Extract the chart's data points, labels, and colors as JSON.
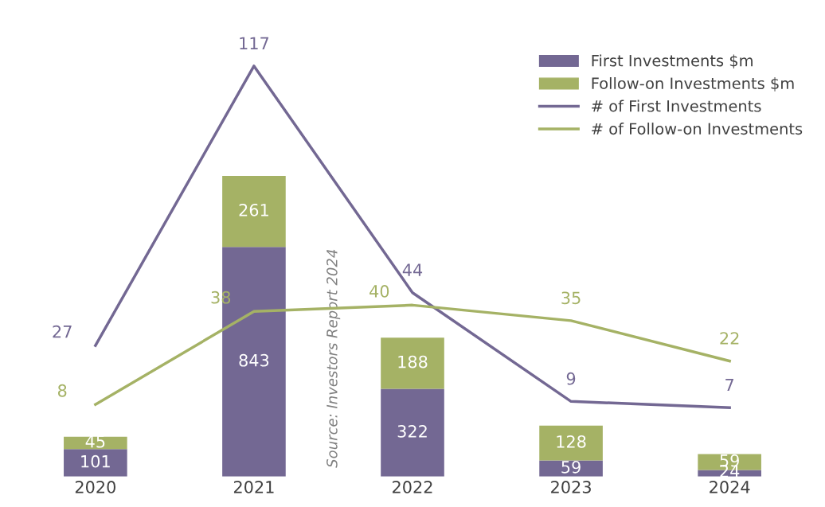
{
  "chart_data": {
    "type": "bar",
    "stacked": true,
    "categories": [
      "2020",
      "2021",
      "2022",
      "2023",
      "2024"
    ],
    "series": [
      {
        "name": "First Investments $m",
        "color": "#736893",
        "values": [
          101,
          843,
          322,
          59,
          24
        ]
      },
      {
        "name": "Follow-on Investments $m",
        "color": "#a5b265",
        "values": [
          45,
          261,
          188,
          128,
          59
        ]
      },
      {
        "name": "# of First Investments",
        "type": "line",
        "axis": "y2",
        "color": "#736893",
        "values": [
          27,
          117,
          44,
          9,
          7
        ]
      },
      {
        "name": "# of Follow-on Investments",
        "type": "line",
        "axis": "y2",
        "color": "#a5b265",
        "values": [
          8,
          38,
          40,
          35,
          22
        ]
      }
    ],
    "tick_labels": "x",
    "data_labels": true,
    "legend": "top right",
    "grid": false,
    "annotations": [
      "Source: Investors Report 2024"
    ]
  }
}
